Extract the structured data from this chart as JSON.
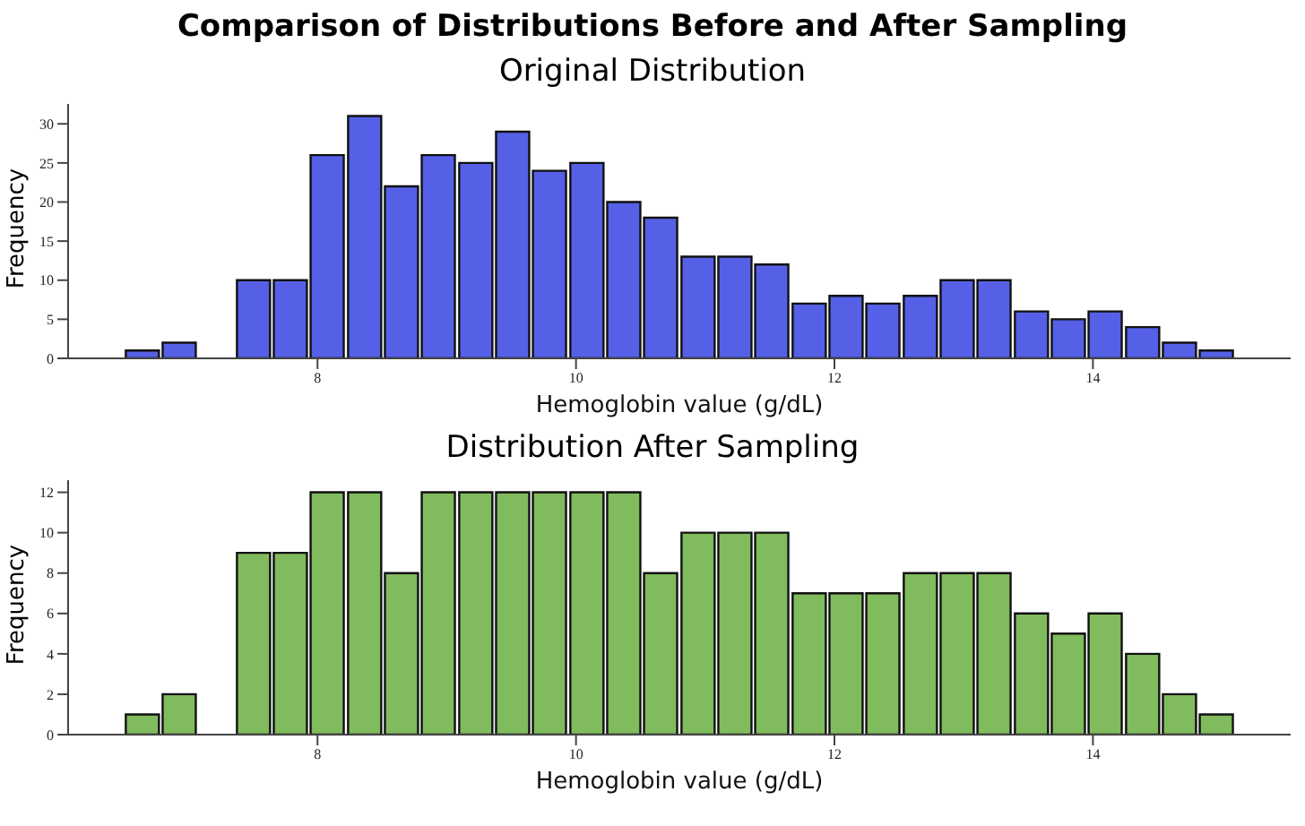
{
  "chart_data": [
    {
      "type": "histogram",
      "title": "Comparison of Distributions Before and After Sampling",
      "subtitle": "Original Distribution",
      "xlabel": "Hemoglobin value (g/dL)",
      "ylabel": "Frequency",
      "color": "#5560e6",
      "bins": [
        6.5,
        6.79,
        7.07,
        7.36,
        7.65,
        7.93,
        8.22,
        8.51,
        8.79,
        9.08,
        9.37,
        9.65,
        9.94,
        10.23,
        10.51,
        10.8,
        11.09,
        11.37,
        11.66,
        11.95,
        12.23,
        12.52,
        12.81,
        13.09,
        13.38,
        13.67,
        13.95,
        14.24,
        14.53,
        14.81,
        15.1
      ],
      "values": [
        1,
        2,
        0,
        10,
        10,
        26,
        31,
        22,
        26,
        25,
        29,
        24,
        25,
        20,
        18,
        13,
        13,
        12,
        7,
        8,
        7,
        8,
        10,
        10,
        6,
        5,
        6,
        4,
        2,
        1
      ],
      "xlim": [
        6.07,
        15.53
      ],
      "xticks": [
        8,
        10,
        12,
        14
      ],
      "ylim": [
        0,
        32.55
      ],
      "yticks": [
        0,
        5,
        10,
        15,
        20,
        25,
        30
      ],
      "grid": false
    },
    {
      "type": "histogram",
      "title": "Distribution After Sampling",
      "xlabel": "Hemoglobin value (g/dL)",
      "ylabel": "Frequency",
      "color": "#80bb5e",
      "bins": [
        6.5,
        6.79,
        7.07,
        7.36,
        7.65,
        7.93,
        8.22,
        8.51,
        8.79,
        9.08,
        9.37,
        9.65,
        9.94,
        10.23,
        10.51,
        10.8,
        11.09,
        11.37,
        11.66,
        11.95,
        12.23,
        12.52,
        12.81,
        13.09,
        13.38,
        13.67,
        13.95,
        14.24,
        14.53,
        14.81,
        15.1
      ],
      "values": [
        1,
        2,
        0,
        9,
        9,
        12,
        12,
        8,
        12,
        12,
        12,
        12,
        12,
        12,
        8,
        10,
        10,
        10,
        7,
        7,
        7,
        8,
        8,
        8,
        6,
        5,
        6,
        4,
        2,
        1
      ],
      "xlim": [
        6.07,
        15.53
      ],
      "xticks": [
        8,
        10,
        12,
        14
      ],
      "ylim": [
        0,
        12.6
      ],
      "yticks": [
        0,
        2,
        4,
        6,
        8,
        10,
        12
      ],
      "grid": false
    }
  ]
}
